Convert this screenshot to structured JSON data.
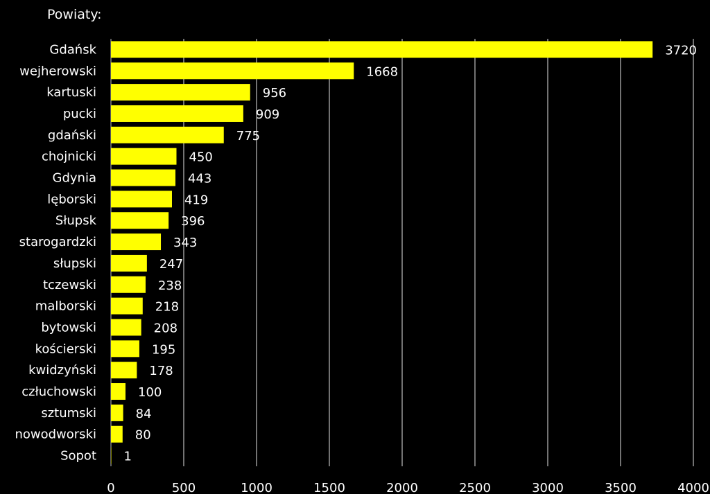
{
  "chart_data": {
    "type": "bar",
    "orientation": "horizontal",
    "title": "Powiaty:",
    "categories": [
      "Gdańsk",
      "wejherowski",
      "kartuski",
      "pucki",
      "gdański",
      "chojnicki",
      "Gdynia",
      "lęborski",
      "Słupsk",
      "starogardzki",
      "słupski",
      "tczewski",
      "malborski",
      "bytowski",
      "kościerski",
      "kwidzyński",
      "człuchowski",
      "sztumski",
      "nowodworski",
      "Sopot"
    ],
    "values": [
      3720,
      1668,
      956,
      909,
      775,
      450,
      443,
      419,
      396,
      343,
      247,
      238,
      218,
      208,
      195,
      178,
      100,
      84,
      80,
      1
    ],
    "xlim": [
      0,
      4000
    ],
    "xticks": [
      "0",
      "500",
      "1000",
      "1500",
      "2000",
      "2500",
      "3000",
      "3500",
      "4000"
    ],
    "grid": true,
    "colors": {
      "bar": "#ffff00",
      "background": "#000000",
      "text": "#ffffff",
      "grid": "#bfbfbf"
    }
  }
}
